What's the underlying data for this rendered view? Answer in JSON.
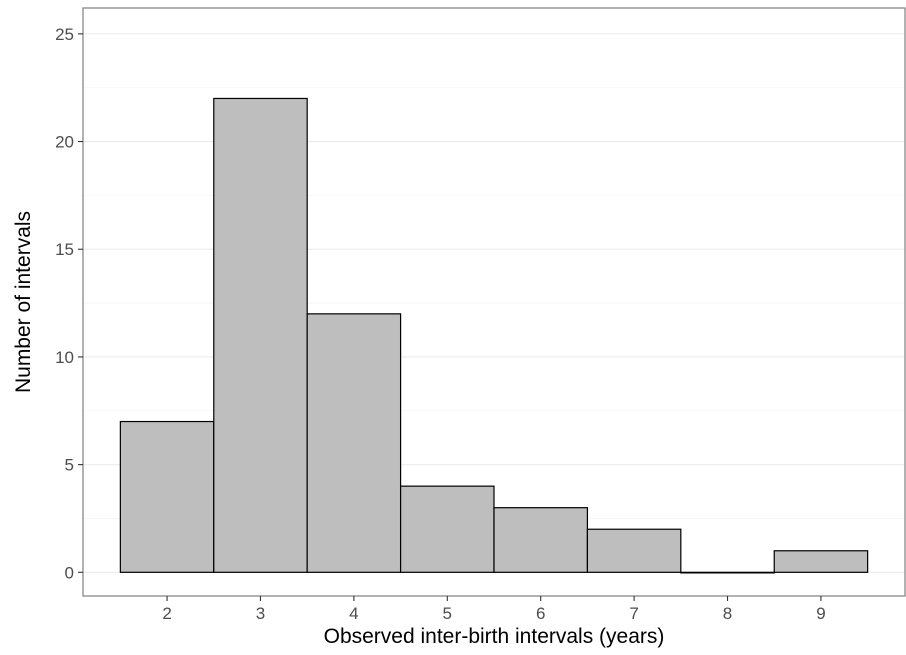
{
  "chart_data": {
    "type": "bar",
    "x": [
      2,
      3,
      4,
      5,
      6,
      7,
      8,
      9
    ],
    "values": [
      7,
      22,
      12,
      4,
      3,
      2,
      0,
      1
    ],
    "bin_width": 1,
    "xlabel": "Observed inter-birth intervals (years)",
    "ylabel": "Number of intervals",
    "xlim": [
      1.1,
      9.9
    ],
    "ylim": [
      -1.1,
      26.2
    ],
    "x_ticks": [
      "2",
      "3",
      "4",
      "5",
      "6",
      "7",
      "8",
      "9"
    ],
    "y_ticks": [
      "0",
      "5",
      "10",
      "15",
      "20",
      "25"
    ],
    "y_tick_values": [
      0,
      5,
      10,
      15,
      20,
      25
    ],
    "grid": true,
    "legend": "none",
    "colors": {
      "bar_fill": "#bebebe",
      "bar_outline": "#000000"
    }
  }
}
